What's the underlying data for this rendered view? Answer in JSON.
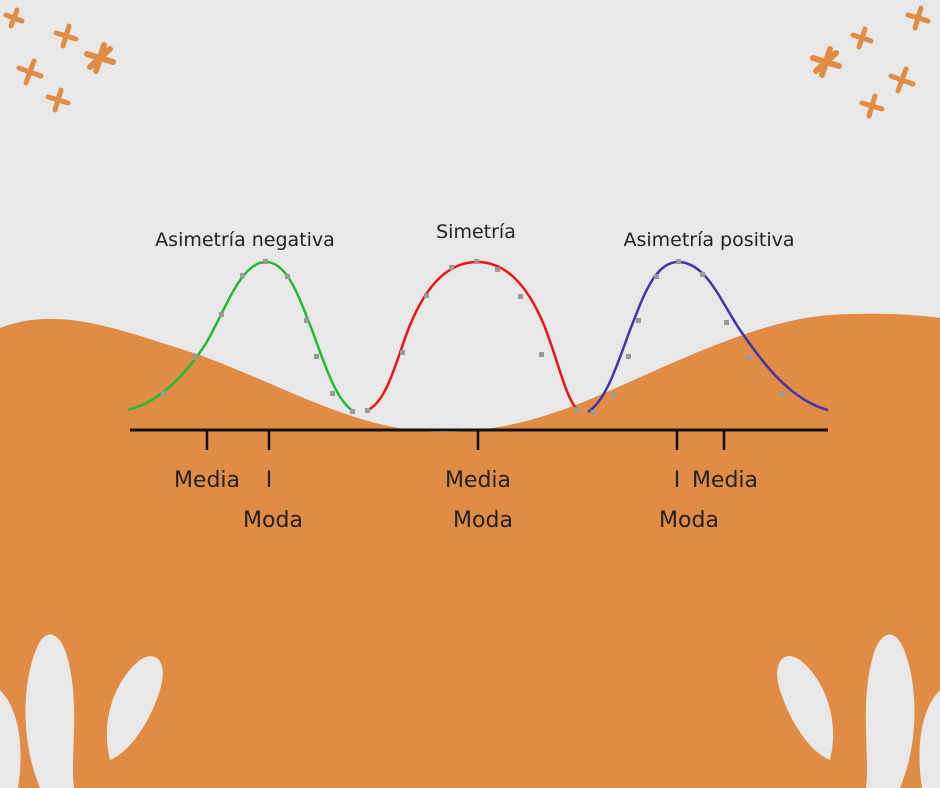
{
  "colors": {
    "background": "#e8e8e8",
    "orange": "#e08c45",
    "leaf": "#e8e8e8",
    "axis": "#111111",
    "negative_curve": "#22bb33",
    "symmetric_curve": "#ee1111",
    "positive_curve": "#4433aa",
    "marker_dots": "#999999"
  },
  "icons": {
    "decoration_top_left": "orange-stars-icon",
    "decoration_top_right": "orange-stars-icon",
    "decoration_bottom_left": "leaf-icon",
    "decoration_bottom_right": "leaf-icon"
  },
  "diagram": {
    "curves": [
      {
        "title": "Asimetría negativa",
        "skew": "negative"
      },
      {
        "title": "Simetría",
        "skew": "none"
      },
      {
        "title": "Asimetría positiva",
        "skew": "positive"
      }
    ],
    "tick_labels": {
      "negative_mean": "Media",
      "negative_mode_bar": "I",
      "negative_mode": "Moda",
      "symmetric_mean": "Media",
      "symmetric_mode": "Moda",
      "positive_mode_bar": "I",
      "positive_mean": "Media",
      "positive_mode": "Moda"
    }
  }
}
